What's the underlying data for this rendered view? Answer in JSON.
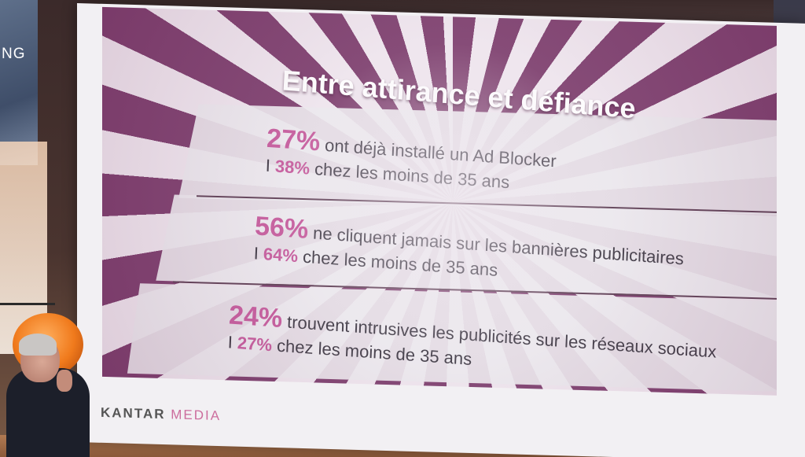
{
  "side_banner": {
    "text": "NG"
  },
  "slide": {
    "title": "Entre attirance et défiance",
    "stats": [
      {
        "pct": "27%",
        "text": "ont déjà installé un Ad Blocker",
        "sub_prefix": "I",
        "sub_pct": "38%",
        "sub_text": "chez les moins de 35 ans"
      },
      {
        "pct": "56%",
        "text": "ne cliquent jamais sur les bannières publicitaires",
        "sub_prefix": "I",
        "sub_pct": "64%",
        "sub_text": "chez les moins de 35 ans"
      },
      {
        "pct": "24%",
        "text": "trouvent intrusives les publicités sur les réseaux sociaux",
        "sub_prefix": "I",
        "sub_pct": "27%",
        "sub_text": "chez les moins de 35 ans"
      }
    ],
    "accent_color": "#c4579a",
    "background_color": "#7a3a6a"
  },
  "footer": {
    "logo_main": "KANTAR",
    "logo_sub": "MEDIA"
  }
}
